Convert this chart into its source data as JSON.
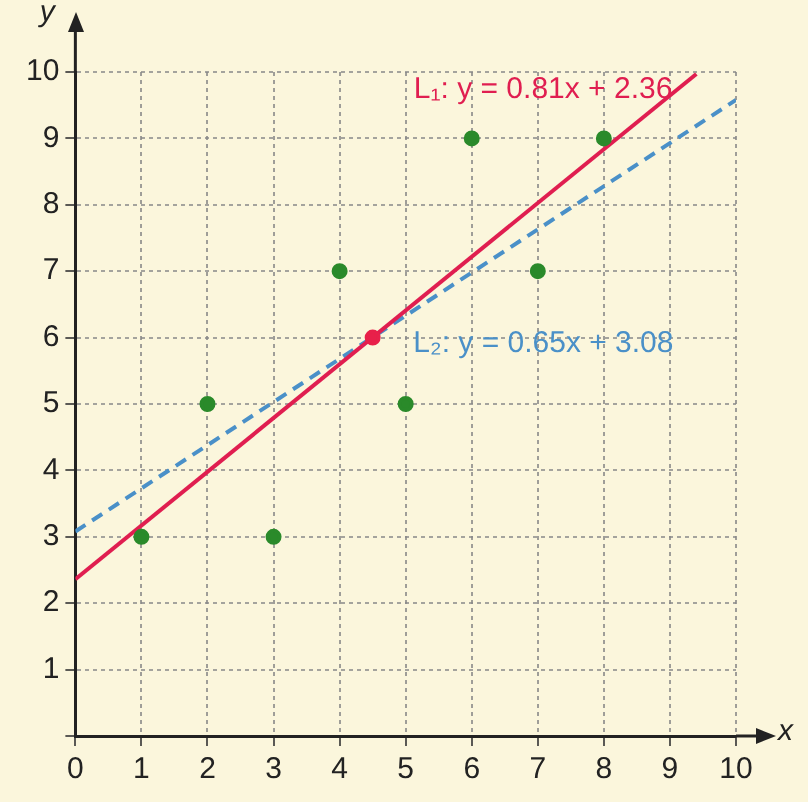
{
  "chart_data": {
    "type": "scatter",
    "xlabel": "x",
    "ylabel": "y",
    "xlim": [
      0,
      10
    ],
    "ylim": [
      0,
      10
    ],
    "xticks": [
      0,
      1,
      2,
      3,
      4,
      5,
      6,
      7,
      8,
      9,
      10
    ],
    "yticks": [
      {
        "value": 0,
        "label": null
      },
      1,
      2,
      3,
      4,
      5,
      6,
      7,
      8,
      9,
      10
    ],
    "grid": true,
    "legend": false,
    "marker": "circle",
    "series": [
      {
        "color": "#2a8a2a",
        "x": [
          1,
          2,
          3,
          4,
          5,
          6,
          7,
          8
        ],
        "values": [
          3,
          5,
          3,
          7,
          5,
          9,
          7,
          9
        ]
      },
      {
        "color": "#e8204a",
        "x": [
          4.5
        ],
        "values": [
          6
        ]
      },
      {
        "type": "line",
        "name": "L₁: y = 0.81x + 2.36",
        "color": "#e01e50",
        "line_style": "solid",
        "marker": "none",
        "x": [
          0,
          9.4
        ],
        "values": [
          2.36,
          9.97
        ]
      },
      {
        "type": "line",
        "name": "L₂: y = 0.65x + 3.08",
        "color": "#4a90c8",
        "line_style": "dashed",
        "marker": "none",
        "x": [
          0,
          10
        ],
        "values": [
          3.08,
          9.58
        ]
      }
    ]
  }
}
